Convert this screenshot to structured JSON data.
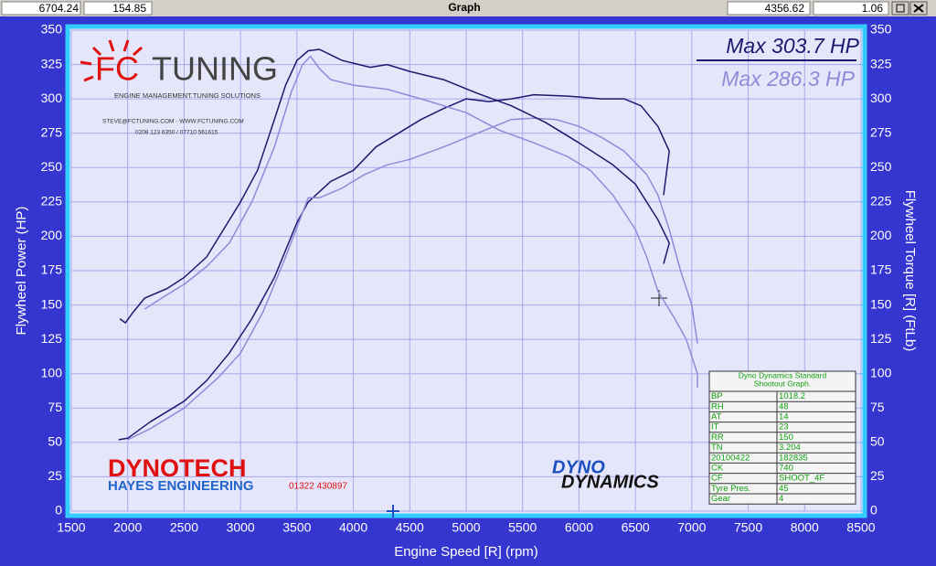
{
  "header": {
    "fields": [
      "6704.24",
      "154.85",
      "Graph",
      "4356.62",
      "1.06"
    ]
  },
  "chart_data": {
    "type": "line",
    "xlabel": "Engine Speed [R] (rpm)",
    "ylabel": "Flywheel Power (HP)",
    "y2label": "Flywheel Torque [R] (FtLb)",
    "xlim": [
      1500,
      8500
    ],
    "xticks": [
      1500,
      2000,
      2500,
      3000,
      3500,
      4000,
      4500,
      5000,
      5500,
      6000,
      6500,
      7000,
      7500,
      8000,
      8500
    ],
    "ylim": [
      0,
      350
    ],
    "yticks": [
      0,
      25,
      50,
      75,
      100,
      125,
      150,
      175,
      200,
      225,
      250,
      275,
      300,
      325,
      350
    ],
    "y2lim": [
      0,
      350
    ],
    "y2ticks": [
      0,
      25,
      50,
      75,
      100,
      125,
      150,
      175,
      200,
      225,
      250,
      275,
      300,
      325,
      350
    ],
    "grid": true,
    "annotations": [
      {
        "text": "Max 303.7 HP",
        "color": "#1a1a6e"
      },
      {
        "text": "Max 286.3 HP",
        "color": "#8c8cd8"
      }
    ],
    "series": [
      {
        "color": "#1a1a6e",
        "axis": "y",
        "x": [
          1920,
          2000,
          2200,
          2500,
          2700,
          2900,
          3100,
          3300,
          3500,
          3600,
          3800,
          4000,
          4200,
          4400,
          4600,
          4800,
          5000,
          5200,
          5400,
          5600,
          5900,
          6200,
          6400,
          6550,
          6700,
          6800,
          6750
        ],
        "values": [
          52,
          53,
          65,
          80,
          95,
          115,
          140,
          170,
          210,
          225,
          240,
          248,
          265,
          275,
          285,
          293,
          300,
          298,
          300,
          303,
          302,
          300,
          300,
          295,
          280,
          262,
          230
        ]
      },
      {
        "color": "#8c8cd8",
        "axis": "y",
        "x": [
          2000,
          2200,
          2500,
          2800,
          3000,
          3200,
          3400,
          3600,
          3700,
          3900,
          4100,
          4300,
          4500,
          4800,
          5100,
          5400,
          5600,
          5800,
          6000,
          6200,
          6400,
          6600,
          6700,
          6800,
          6900,
          7000,
          7050
        ],
        "values": [
          52,
          60,
          75,
          97,
          115,
          145,
          185,
          228,
          228,
          235,
          245,
          252,
          256,
          265,
          275,
          285,
          286,
          285,
          280,
          272,
          262,
          245,
          230,
          205,
          175,
          150,
          122
        ]
      },
      {
        "color": "#1a1a6e",
        "axis": "y2",
        "x": [
          1930,
          1980,
          2050,
          2150,
          2350,
          2500,
          2700,
          2850,
          3000,
          3150,
          3300,
          3400,
          3500,
          3600,
          3700,
          3800,
          3900,
          4000,
          4150,
          4300,
          4500,
          4800,
          5100,
          5400,
          5700,
          6000,
          6300,
          6500,
          6700,
          6800,
          6750
        ],
        "values": [
          140,
          137,
          145,
          155,
          162,
          170,
          185,
          205,
          225,
          248,
          285,
          310,
          328,
          335,
          336,
          332,
          328,
          326,
          323,
          325,
          320,
          314,
          304,
          295,
          283,
          268,
          252,
          238,
          212,
          195,
          180
        ]
      },
      {
        "color": "#8c8cd8",
        "axis": "y2",
        "x": [
          2150,
          2300,
          2500,
          2700,
          2900,
          3100,
          3300,
          3450,
          3550,
          3620,
          3700,
          3800,
          4000,
          4300,
          4600,
          5000,
          5300,
          5600,
          5900,
          6100,
          6300,
          6500,
          6600,
          6700,
          6850,
          6950,
          7050,
          7050
        ],
        "values": [
          147,
          155,
          165,
          178,
          195,
          225,
          265,
          305,
          325,
          331,
          322,
          314,
          310,
          307,
          300,
          290,
          277,
          268,
          258,
          248,
          230,
          205,
          185,
          160,
          140,
          125,
          100,
          90
        ]
      }
    ]
  },
  "logos": {
    "fc": "FC",
    "tuning": "TUNING",
    "tagline": "ENGINE MANAGEMENT.TUNING SOLUTIONS",
    "contact": "STEVE@FCTUNING.COM  -  WWW.FCTUNING.COM",
    "phones": "0208 123 6350 / 07710 561615",
    "dynotech": "DYNOTECH",
    "hayes": "HAYES ENGINEERING",
    "hayes_phone": "01322 430897",
    "dyno": "DYNO",
    "dynamics": "DYNAMICS"
  },
  "info_table": {
    "title": [
      "Dyno Dynamics Standard",
      "Shootout Graph."
    ],
    "rows": [
      [
        "BP",
        "1018.2"
      ],
      [
        "RH",
        "48"
      ],
      [
        "AT",
        "14"
      ],
      [
        "IT",
        "23"
      ],
      [
        "RR",
        "150"
      ],
      [
        "TN",
        "3.204"
      ],
      [
        "20100422",
        "182835"
      ],
      [
        "CK",
        "740"
      ],
      [
        "CF",
        "SHOOT_4F"
      ],
      [
        "Tyre Pres.",
        "45"
      ],
      [
        "Gear",
        "4"
      ]
    ]
  }
}
